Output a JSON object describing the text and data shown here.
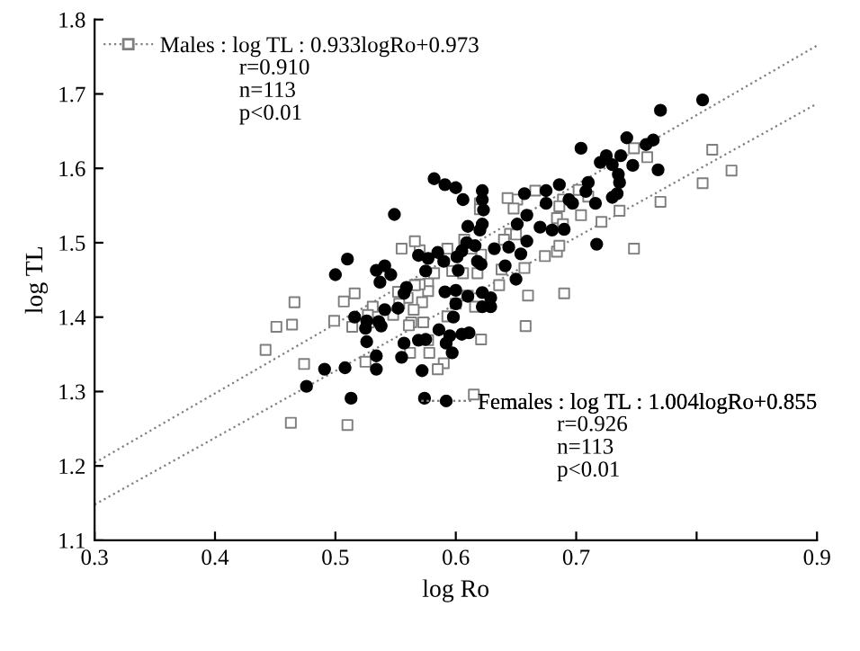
{
  "chart_data": {
    "type": "scatter",
    "xlabel": "log Ro",
    "ylabel": "log TL",
    "xlim": [
      0.3,
      0.9
    ],
    "ylim": [
      1.1,
      1.8
    ],
    "xticks": [
      0.3,
      0.4,
      0.5,
      0.6,
      0.7,
      {
        "value": 0.8,
        "label": null
      },
      0.9
    ],
    "yticks": [
      1.1,
      1.2,
      1.3,
      1.4,
      1.5,
      1.6,
      1.7,
      1.8
    ],
    "grid": false,
    "legend": "top left",
    "annotations": [
      "r=0.910\nn=113\np<0.01",
      "r=0.926\nn=113\np<0.01"
    ],
    "series": [
      {
        "name": "Males : log TL : 0.933logRo+0.973",
        "color": "#7f7f7f",
        "marker": "square",
        "x": [
          0.813,
          0.829,
          0.805,
          0.748,
          0.77,
          0.759,
          0.748,
          0.736,
          0.721,
          0.704,
          0.702,
          0.71,
          0.689,
          0.686,
          0.684,
          0.689,
          0.684,
          0.674,
          0.686,
          0.69,
          0.666,
          0.651,
          0.643,
          0.648,
          0.645,
          0.65,
          0.64,
          0.657,
          0.66,
          0.658,
          0.636,
          0.638,
          0.62,
          0.62,
          0.621,
          0.618,
          0.621,
          0.615,
          0.616,
          0.61,
          0.607,
          0.613,
          0.606,
          0.597,
          0.593,
          0.6,
          0.593,
          0.59,
          0.585,
          0.582,
          0.577,
          0.577,
          0.578,
          0.577,
          0.573,
          0.572,
          0.57,
          0.57,
          0.566,
          0.563,
          0.562,
          0.565,
          0.566,
          0.555,
          0.552,
          0.56,
          0.561,
          0.553,
          0.548,
          0.531,
          0.528,
          0.525,
          0.527,
          0.516,
          0.514,
          0.51,
          0.507,
          0.499,
          0.474,
          0.466,
          0.464,
          0.451,
          0.442,
          0.463
        ],
        "values": [
          1.625,
          1.597,
          1.58,
          1.492,
          1.555,
          1.615,
          1.627,
          1.543,
          1.528,
          1.537,
          1.571,
          1.562,
          1.558,
          1.549,
          1.533,
          1.525,
          1.488,
          1.482,
          1.496,
          1.432,
          1.57,
          1.558,
          1.56,
          1.546,
          1.512,
          1.511,
          1.504,
          1.466,
          1.429,
          1.388,
          1.443,
          1.464,
          1.553,
          1.545,
          1.484,
          1.459,
          1.37,
          1.296,
          1.414,
          1.429,
          1.504,
          1.492,
          1.459,
          1.462,
          1.492,
          1.418,
          1.401,
          1.338,
          1.33,
          1.459,
          1.445,
          1.435,
          1.352,
          1.369,
          1.393,
          1.42,
          1.444,
          1.49,
          1.502,
          1.393,
          1.352,
          1.41,
          1.443,
          1.492,
          1.434,
          1.426,
          1.389,
          1.418,
          1.403,
          1.414,
          1.393,
          1.34,
          1.403,
          1.432,
          1.387,
          1.255,
          1.421,
          1.395,
          1.337,
          1.42,
          1.39,
          1.387,
          1.356,
          1.258
        ]
      },
      {
        "name": "Females : log TL : 1.004logRo+0.855",
        "color": "#000000",
        "marker": "circle",
        "x": [
          0.805,
          0.77,
          0.704,
          0.742,
          0.758,
          0.764,
          0.768,
          0.725,
          0.72,
          0.73,
          0.737,
          0.747,
          0.735,
          0.736,
          0.734,
          0.73,
          0.71,
          0.708,
          0.716,
          0.717,
          0.694,
          0.697,
          0.686,
          0.675,
          0.675,
          0.67,
          0.68,
          0.69,
          0.657,
          0.659,
          0.651,
          0.659,
          0.644,
          0.654,
          0.641,
          0.65,
          0.632,
          0.622,
          0.622,
          0.623,
          0.622,
          0.62,
          0.606,
          0.61,
          0.609,
          0.616,
          0.618,
          0.621,
          0.605,
          0.601,
          0.602,
          0.622,
          0.629,
          0.622,
          0.629,
          0.61,
          0.6,
          0.605,
          0.611,
          0.598,
          0.6,
          0.582,
          0.591,
          0.6,
          0.59,
          0.585,
          0.577,
          0.575,
          0.591,
          0.595,
          0.592,
          0.597,
          0.586,
          0.575,
          0.569,
          0.572,
          0.574,
          0.555,
          0.557,
          0.557,
          0.559,
          0.549,
          0.552,
          0.546,
          0.541,
          0.534,
          0.537,
          0.541,
          0.536,
          0.538,
          0.534,
          0.534,
          0.526,
          0.525,
          0.526,
          0.51,
          0.5,
          0.516,
          0.508,
          0.513,
          0.491,
          0.476,
          0.569
        ],
        "values": [
          1.692,
          1.678,
          1.627,
          1.641,
          1.632,
          1.638,
          1.598,
          1.617,
          1.608,
          1.605,
          1.617,
          1.604,
          1.592,
          1.581,
          1.566,
          1.561,
          1.581,
          1.569,
          1.553,
          1.498,
          1.558,
          1.553,
          1.578,
          1.57,
          1.553,
          1.521,
          1.517,
          1.518,
          1.566,
          1.537,
          1.525,
          1.502,
          1.494,
          1.485,
          1.469,
          1.451,
          1.492,
          1.57,
          1.558,
          1.544,
          1.525,
          1.517,
          1.558,
          1.522,
          1.5,
          1.496,
          1.475,
          1.471,
          1.489,
          1.481,
          1.463,
          1.433,
          1.426,
          1.414,
          1.414,
          1.428,
          1.418,
          1.377,
          1.379,
          1.4,
          1.436,
          1.586,
          1.578,
          1.574,
          1.475,
          1.487,
          1.479,
          1.462,
          1.434,
          1.375,
          1.365,
          1.352,
          1.383,
          1.37,
          1.369,
          1.328,
          1.291,
          1.346,
          1.365,
          1.432,
          1.44,
          1.538,
          1.412,
          1.457,
          1.469,
          1.463,
          1.447,
          1.41,
          1.394,
          1.388,
          1.348,
          1.33,
          1.395,
          1.385,
          1.367,
          1.478,
          1.457,
          1.4,
          1.332,
          1.291,
          1.33,
          1.307,
          1.483
        ]
      },
      {
        "type": "line",
        "color": "#7f7f7f",
        "line_style": "dotted",
        "x": [
          0.3,
          0.9
        ],
        "values": [
          1.204,
          1.765
        ]
      },
      {
        "type": "line",
        "color": "#7f7f7f",
        "line_style": "dotted",
        "x": [
          0.3,
          0.9
        ],
        "values": [
          1.148,
          1.687
        ]
      }
    ]
  }
}
